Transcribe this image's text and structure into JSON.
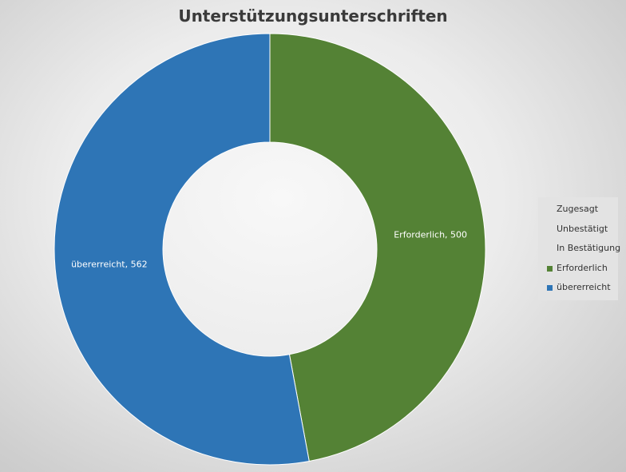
{
  "chart_data": {
    "type": "pie",
    "title": "Unterstützungsunterschriften",
    "donut": true,
    "legend_position": "right",
    "series": [
      {
        "name": "Zugesagt",
        "value": 0,
        "color": "#ed7d31"
      },
      {
        "name": "Unbestätigt",
        "value": 0,
        "color": "#a5a5a5"
      },
      {
        "name": "In Bestätigung",
        "value": 0,
        "color": "#ffc000"
      },
      {
        "name": "Erforderlich",
        "value": 500,
        "color": "#548235"
      },
      {
        "name": "übererreicht",
        "value": 562,
        "color": "#2e75b6"
      }
    ],
    "data_labels": [
      "Erforderlich, 500",
      "übererreicht, 562"
    ]
  }
}
